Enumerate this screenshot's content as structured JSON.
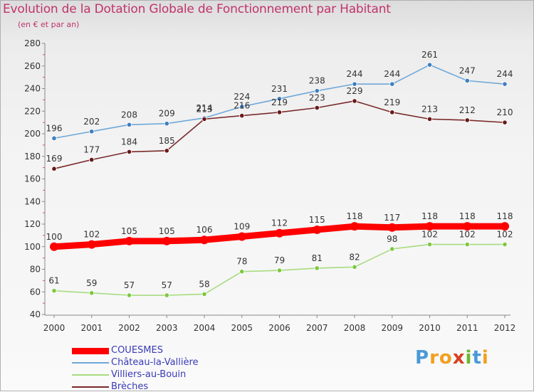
{
  "header": {
    "title": "Evolution de la Dotation Globale de Fonctionnement par Habitant",
    "subtitle": "(en € et par an)"
  },
  "colors": {
    "title": "#c0336a",
    "legend_text": "#3a3ab8",
    "axis": "#888888"
  },
  "chart_data": {
    "type": "line",
    "title": "Evolution de la Dotation Globale de Fonctionnement par Habitant",
    "subtitle": "(en € et par an)",
    "x": [
      "2000",
      "2001",
      "2002",
      "2003",
      "2004",
      "2005",
      "2006",
      "2007",
      "2008",
      "2009",
      "2010",
      "2011",
      "2012"
    ],
    "ylim": [
      40,
      280
    ],
    "yticks": [
      40,
      60,
      80,
      100,
      120,
      140,
      160,
      180,
      200,
      220,
      240,
      260,
      280
    ],
    "grid": false,
    "legend_position": "bottom-left",
    "series": [
      {
        "name": "COUESMES",
        "color": "#ff0000",
        "marker": "#ff0000",
        "emphasis": true,
        "values": [
          100,
          102,
          105,
          105,
          106,
          109,
          112,
          115,
          118,
          117,
          118,
          118,
          118
        ]
      },
      {
        "name": "Château-la-Vallière",
        "color": "#6fa8d8",
        "marker": "#3d7fc0",
        "values": [
          196,
          202,
          208,
          209,
          214,
          224,
          231,
          238,
          244,
          244,
          261,
          247,
          244
        ]
      },
      {
        "name": "Villiers-au-Bouin",
        "color": "#a8dc80",
        "marker": "#7cc840",
        "values": [
          61,
          59,
          57,
          57,
          58,
          78,
          79,
          81,
          82,
          98,
          102,
          102,
          102
        ]
      },
      {
        "name": "Brèches",
        "color": "#7a2a2a",
        "marker": "#6a1818",
        "values": [
          169,
          177,
          184,
          185,
          213,
          216,
          219,
          223,
          229,
          219,
          213,
          212,
          210
        ]
      }
    ]
  },
  "logo": {
    "letters": [
      "P",
      "r",
      "o",
      "x",
      "i",
      "t",
      "i"
    ],
    "colors": [
      "#4a9ad8",
      "#f0a020",
      "#f0a020",
      "#d84020",
      "#6cb830",
      "#4a9ad8",
      "#f0a020"
    ]
  }
}
